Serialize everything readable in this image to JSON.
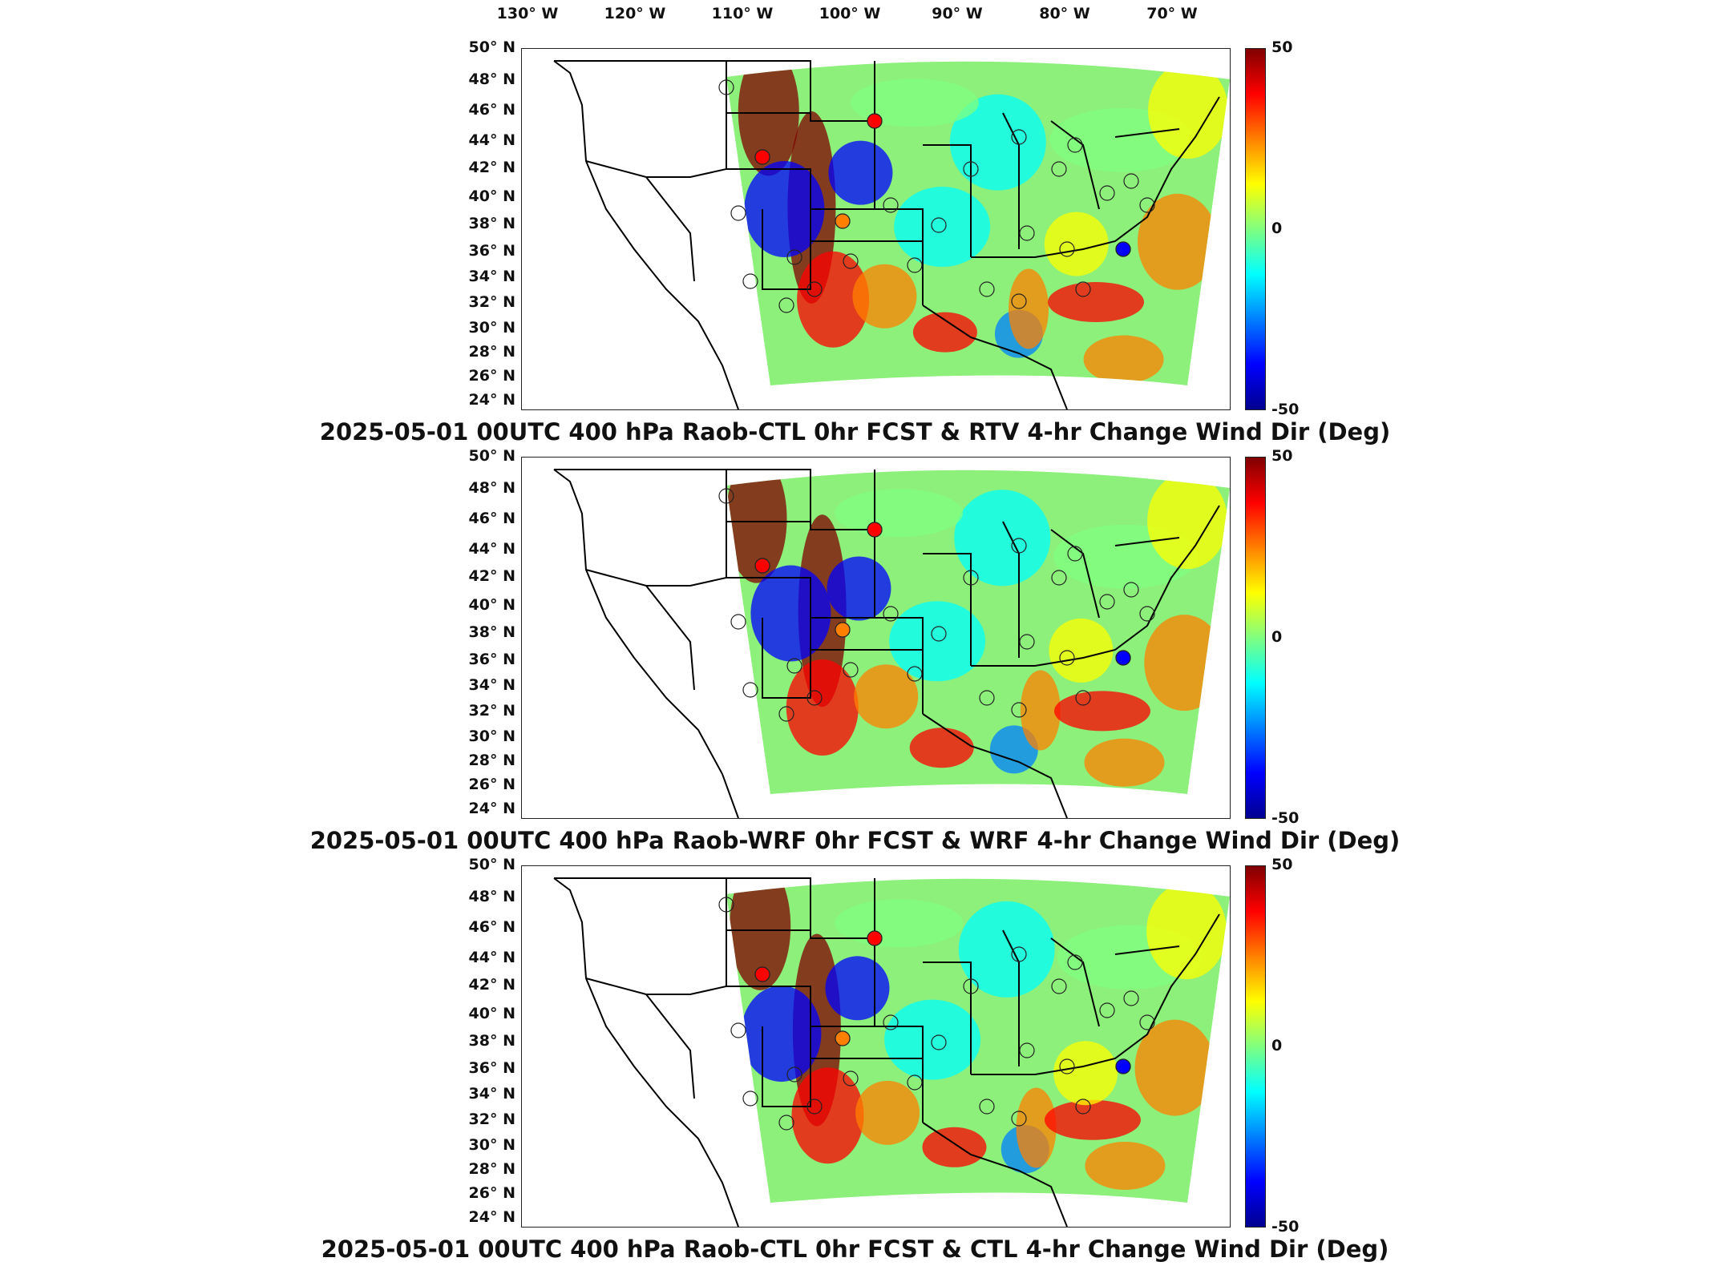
{
  "longitude_labels": [
    "130° W",
    "120° W",
    "110° W",
    "100° W",
    "90° W",
    "80° W",
    "70° W"
  ],
  "latitude_labels": [
    "50° N",
    "48° N",
    "46° N",
    "44° N",
    "42° N",
    "40° N",
    "38° N",
    "36° N",
    "34° N",
    "32° N",
    "30° N",
    "28° N",
    "26° N",
    "24° N"
  ],
  "colorbar": {
    "max_label": "50",
    "mid_label": "0",
    "min_label": "-50",
    "colormap": [
      "#00008f",
      "#0000ff",
      "#0080ff",
      "#00ffff",
      "#80ff80",
      "#ffff00",
      "#ff8000",
      "#ff0000",
      "#800000"
    ]
  },
  "panels": [
    {
      "title": "2025-05-01 00UTC 400 hPa Raob-CTL 0hr FCST & RTV 4-hr Change Wind Dir (Deg)"
    },
    {
      "title": "2025-05-01 00UTC 400 hPa Raob-WRF 0hr FCST & WRF 4-hr Change Wind Dir (Deg)"
    },
    {
      "title": "2025-05-01 00UTC 400 hPa Raob-CTL 0hr FCST & CTL 4-hr Change Wind Dir (Deg)"
    }
  ]
}
